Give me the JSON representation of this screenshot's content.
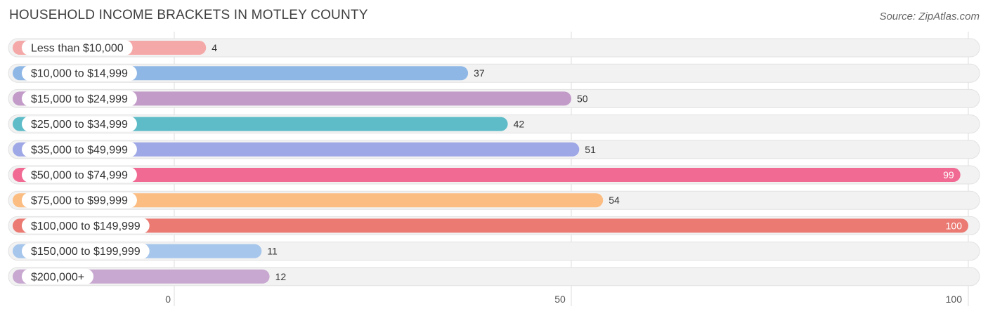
{
  "header": {
    "title": "HOUSEHOLD INCOME BRACKETS IN MOTLEY COUNTY",
    "source": "Source: ZipAtlas.com"
  },
  "chart_data": {
    "type": "bar",
    "orientation": "horizontal",
    "title": "HOUSEHOLD INCOME BRACKETS IN MOTLEY COUNTY",
    "categories": [
      "Less than $10,000",
      "$10,000 to $14,999",
      "$15,000 to $24,999",
      "$25,000 to $34,999",
      "$35,000 to $49,999",
      "$50,000 to $74,999",
      "$75,000 to $99,999",
      "$100,000 to $149,999",
      "$150,000 to $199,999",
      "$200,000+"
    ],
    "values": [
      4,
      37,
      50,
      42,
      51,
      99,
      54,
      100,
      11,
      12
    ],
    "colors": [
      "#f4a9a8",
      "#8fb7e6",
      "#c39bc9",
      "#5dbcc7",
      "#9fa8e6",
      "#f06a93",
      "#fbbd82",
      "#ea7a72",
      "#a6c6ec",
      "#c8a8d0"
    ],
    "xlim": [
      0,
      100
    ],
    "xticks": [
      0,
      50,
      100
    ],
    "grid": true
  }
}
